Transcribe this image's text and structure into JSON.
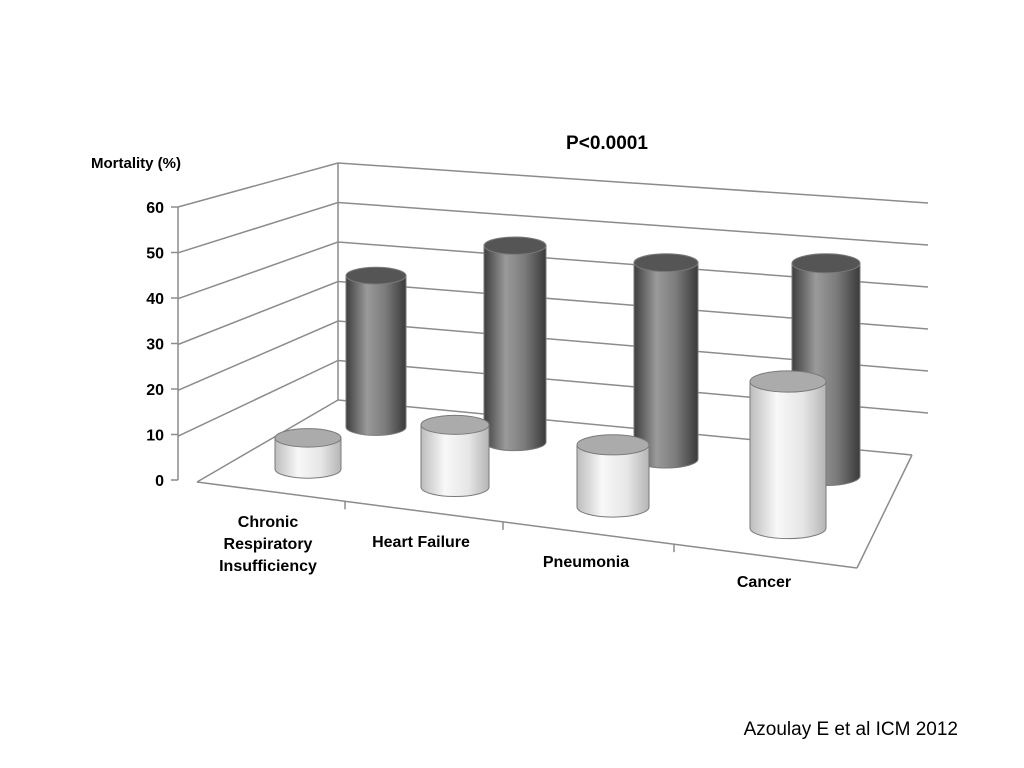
{
  "chart_data": {
    "type": "bar",
    "style": "3d-cylinder",
    "title": "P<0.0001",
    "ylabel": "Mortality (%)",
    "xlabel": "",
    "ylim": [
      0,
      60
    ],
    "y_ticks": [
      0,
      10,
      20,
      30,
      40,
      50,
      60
    ],
    "grid": true,
    "legend": "none",
    "categories": [
      [
        "Chronic",
        "Respiratory",
        "Insufficiency"
      ],
      [
        "Heart Failure"
      ],
      [
        "Pneumonia"
      ],
      [
        "Cancer"
      ]
    ],
    "series": [
      {
        "values": [
          7,
          14,
          14,
          33
        ],
        "color": "#d9d9d9"
      },
      {
        "values": [
          37,
          48,
          48,
          52
        ],
        "color": "#666666"
      }
    ]
  },
  "citation": "Azoulay E et al ICM 2012"
}
